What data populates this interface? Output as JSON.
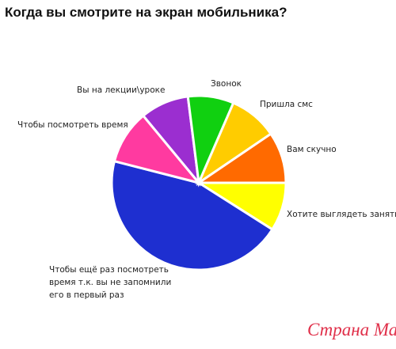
{
  "chart_data": {
    "type": "pie",
    "title": "Когда вы смотрите на экран мобильника?",
    "categories": [
      "Хотите выглядеть занятым",
      "Чтобы ещё раз посмотреть время т.к. вы не запомнили его в первый раз",
      "Чтобы посмотреть время",
      "Вы на лекции\\уроке",
      "Звонок",
      "Пришла смс",
      "Вам скучно"
    ],
    "values": [
      9,
      45,
      10,
      9,
      8.5,
      9,
      9.5
    ],
    "colors": [
      "#ffff00",
      "#1e2fd0",
      "#ff3aa0",
      "#9b2ed0",
      "#10d010",
      "#ffcc00",
      "#ff6a00"
    ],
    "watermark": "Страна Мам"
  }
}
